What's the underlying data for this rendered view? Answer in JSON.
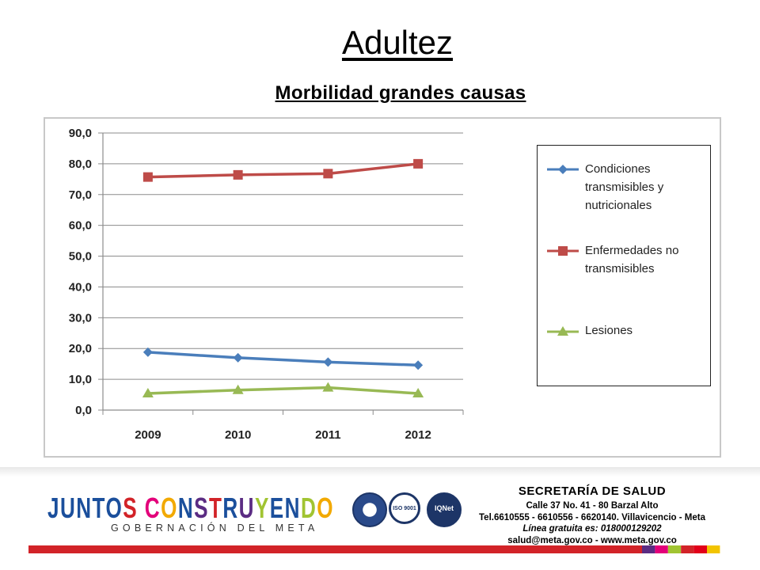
{
  "slide": {
    "title": "Adultez",
    "subtitle": "Morbilidad grandes causas"
  },
  "chart_data": {
    "type": "line",
    "categories": [
      "2009",
      "2010",
      "2011",
      "2012"
    ],
    "series": [
      {
        "name": "Condiciones transmisibles y nutricionales",
        "values": [
          18.8,
          17.0,
          15.6,
          14.6
        ],
        "color": "#4a7ebb",
        "marker": "diamond"
      },
      {
        "name": "Enfermedades no transmisibles",
        "values": [
          75.7,
          76.4,
          76.8,
          80.0
        ],
        "color": "#be4b48",
        "marker": "square"
      },
      {
        "name": "Lesiones",
        "values": [
          5.4,
          6.5,
          7.3,
          5.4
        ],
        "color": "#98b954",
        "marker": "triangle"
      }
    ],
    "ylim": [
      0,
      90
    ],
    "yticks": [
      "0,0",
      "10,0",
      "20,0",
      "30,0",
      "40,0",
      "50,0",
      "60,0",
      "70,0",
      "80,0",
      "90,0"
    ],
    "grid": true,
    "legend": "right"
  },
  "legend": {
    "items": [
      {
        "lines": [
          "Condiciones",
          "transmisibles y",
          "nutricionales"
        ]
      },
      {
        "lines": [
          "Enfermedades no",
          "transmisibles"
        ]
      },
      {
        "lines": [
          "Lesiones"
        ]
      }
    ]
  },
  "footer": {
    "logo_text": "JUNTOS CONSTRUYENDO",
    "logo_subtitle": "GOBERNACIÓN DEL META",
    "seal_labels": [
      "ISO 9001",
      "IQNet"
    ],
    "contact_title": "SECRETARÍA DE SALUD",
    "contact_lines": [
      "Calle 37 No. 41 - 80 Barzal Alto",
      "Tel.6610555 - 6610556 - 6620140. Villavicencio - Meta",
      "Línea gratuita es: 018000129202",
      "salud@meta.gov.co - www.meta.gov.co"
    ],
    "stripe_colors": [
      "#d22328",
      "#5b2c83",
      "#e3007a",
      "#a1c432",
      "#d22328",
      "#e2001a",
      "#f2c400"
    ]
  }
}
